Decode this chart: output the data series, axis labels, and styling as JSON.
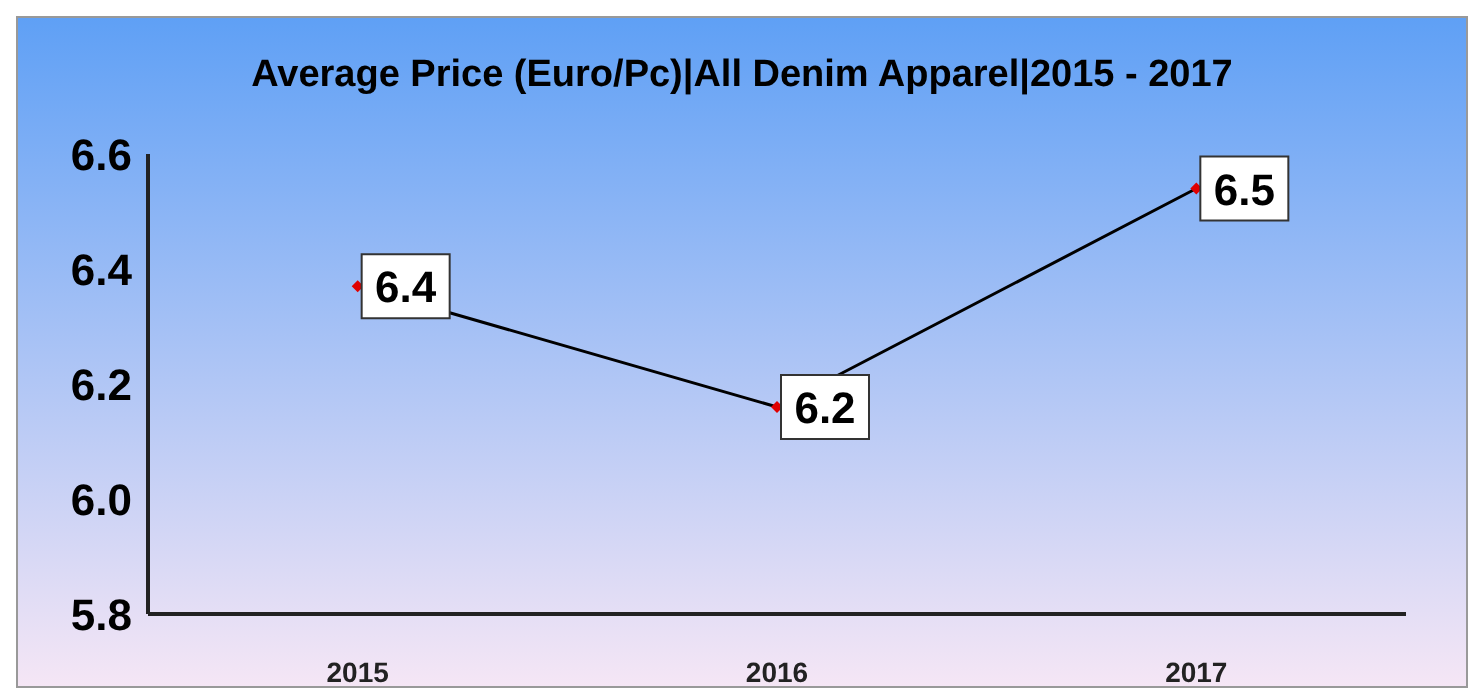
{
  "chart_data": {
    "type": "line",
    "title": "Average Price (Euro/Pc)|All Denim Apparel|2015 - 2017",
    "categories": [
      "2015",
      "2016",
      "2017"
    ],
    "series": [
      {
        "color": "#000000",
        "values": [
          6.37,
          6.16,
          6.54
        ],
        "value_labels": [
          "6.4",
          "6.2",
          "6.5"
        ]
      }
    ],
    "ylim": [
      5.8,
      6.6
    ],
    "yticks": [
      5.8,
      {
        "value": 6,
        "label": "6.0"
      },
      6.2,
      6.4,
      6.6
    ],
    "grid": false,
    "legend": false,
    "marker": "diamond",
    "line_style": "solid"
  }
}
